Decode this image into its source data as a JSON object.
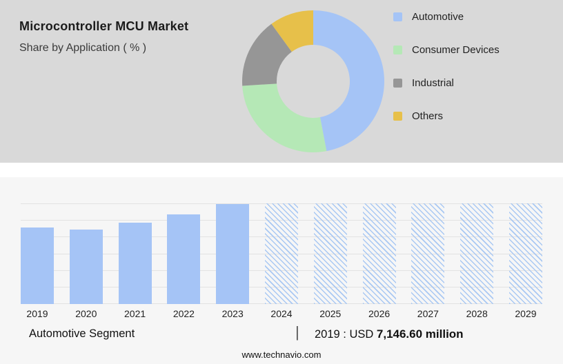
{
  "header": {
    "title": "Microcontroller MCU Market",
    "subtitle": "Share by Application ( % )"
  },
  "chart_data": [
    {
      "type": "pie",
      "donut": true,
      "title": "Share by Application ( % )",
      "labels": [
        "Automotive",
        "Consumer Devices",
        "Industrial",
        "Others"
      ],
      "values": [
        47,
        27,
        16,
        10
      ],
      "colors": [
        "#a5c4f6",
        "#b5e8b6",
        "#969696",
        "#e7c04a"
      ],
      "legend_position": "right",
      "start_angle_deg": 0,
      "direction": "clockwise"
    },
    {
      "type": "bar",
      "categories": [
        "2019",
        "2020",
        "2021",
        "2022",
        "2023",
        "2024",
        "2025",
        "2026",
        "2027",
        "2028",
        "2029"
      ],
      "values": [
        76,
        74,
        81,
        89,
        99,
        100,
        100,
        100,
        100,
        100,
        100
      ],
      "forecast_start_index": 5,
      "bar_color": "#a5c4f6",
      "forecast_style": "hatched",
      "ylim": [
        0,
        100
      ],
      "grid": true,
      "gridline_count": 7,
      "xlabel": "",
      "ylabel": ""
    }
  ],
  "caption": {
    "segment": "Automotive Segment",
    "divider": "|",
    "value_prefix": "2019 : USD",
    "value_bold": "7,146.60 million"
  },
  "footer": {
    "website": "www.technavio.com"
  }
}
